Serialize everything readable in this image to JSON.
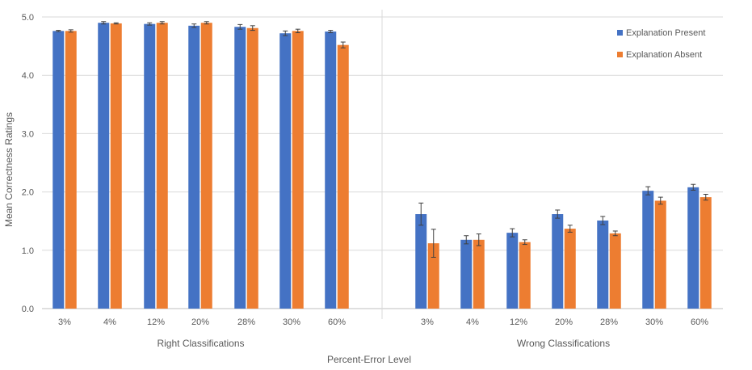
{
  "chart_data": {
    "type": "bar",
    "ylabel": "Mean Correctness Ratings",
    "xlabel": "Percent-Error Level",
    "ylim": [
      0,
      5
    ],
    "yticks": [
      "0.0",
      "1.0",
      "2.0",
      "3.0",
      "4.0",
      "5.0"
    ],
    "grid": true,
    "legend_position": "top-right",
    "groups": [
      {
        "label": "Right Classifications",
        "categories": [
          "3%",
          "4%",
          "12%",
          "20%",
          "28%",
          "30%",
          "60%"
        ],
        "series": [
          {
            "name": "Explanation Present",
            "values": [
              4.76,
              4.9,
              4.88,
              4.85,
              4.83,
              4.72,
              4.75
            ],
            "errors": [
              0.01,
              0.02,
              0.02,
              0.03,
              0.04,
              0.04,
              0.02
            ]
          },
          {
            "name": "Explanation Absent",
            "values": [
              4.76,
              4.89,
              4.9,
              4.9,
              4.81,
              4.76,
              4.52
            ],
            "errors": [
              0.02,
              0.01,
              0.02,
              0.02,
              0.04,
              0.03,
              0.05
            ]
          }
        ]
      },
      {
        "label": "Wrong Classifications",
        "categories": [
          "3%",
          "4%",
          "12%",
          "20%",
          "28%",
          "30%",
          "60%"
        ],
        "series": [
          {
            "name": "Explanation Present",
            "values": [
              1.62,
              1.18,
              1.3,
              1.62,
              1.51,
              2.02,
              2.08
            ],
            "errors": [
              0.19,
              0.07,
              0.07,
              0.07,
              0.07,
              0.07,
              0.05
            ]
          },
          {
            "name": "Explanation Absent",
            "values": [
              1.12,
              1.18,
              1.14,
              1.37,
              1.29,
              1.85,
              1.91
            ],
            "errors": [
              0.24,
              0.1,
              0.04,
              0.06,
              0.04,
              0.06,
              0.05
            ]
          }
        ]
      }
    ]
  },
  "colors": {
    "present": "#4472C4",
    "absent": "#ED7D31",
    "grid": "#D9D9D9",
    "axis": "#BFBFBF",
    "text": "#595959",
    "error_bar": "#404040"
  }
}
